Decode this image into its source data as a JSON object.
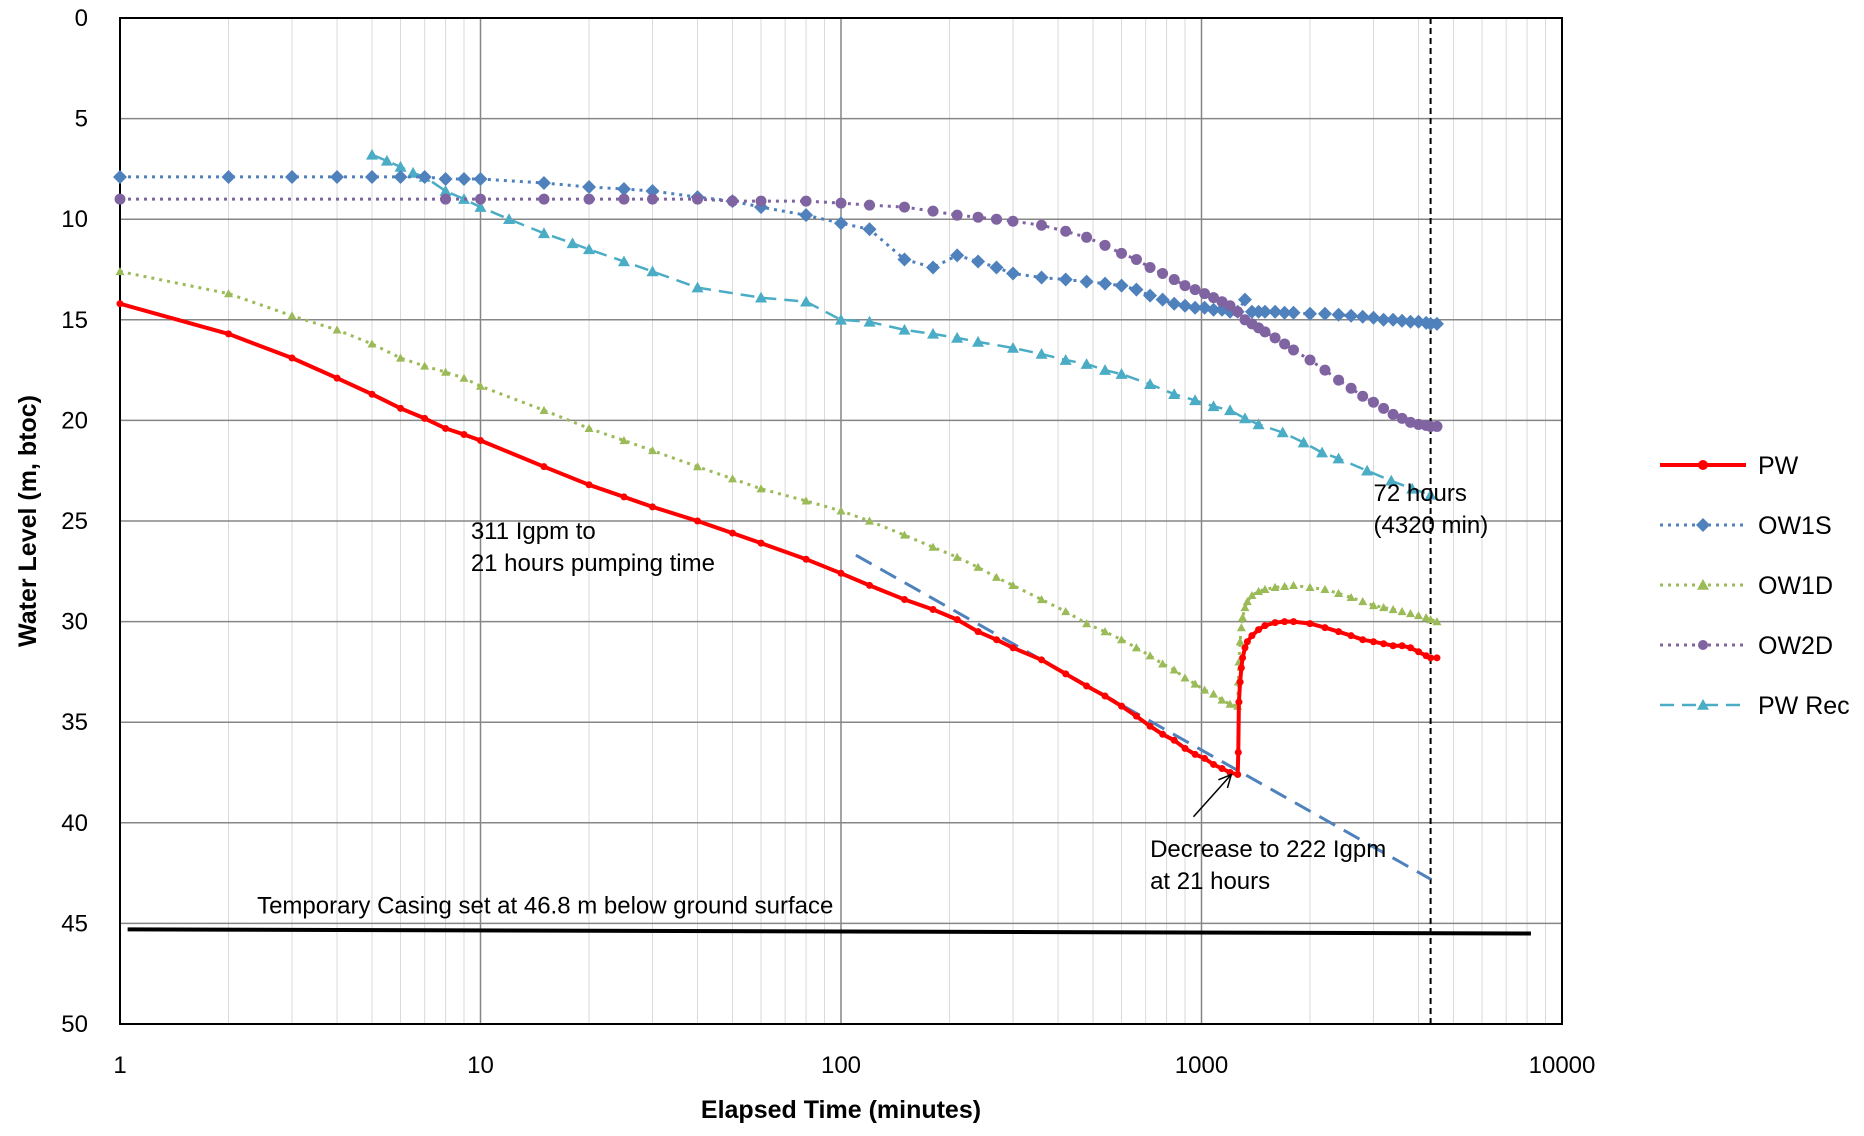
{
  "chart_data": {
    "type": "line",
    "x_scale": "log",
    "y_reversed": true,
    "xlabel": "Elapsed Time (minutes)",
    "ylabel": "Water Level (m, btoc)",
    "xlim": [
      1,
      10000
    ],
    "ylim": [
      0,
      50
    ],
    "x_ticks": [
      {
        "value": 1,
        "label": "1"
      },
      {
        "value": 10,
        "label": "10"
      },
      {
        "value": 100,
        "label": "100"
      },
      {
        "value": 1000,
        "label": "1000"
      },
      {
        "value": 10000,
        "label": "10000"
      }
    ],
    "y_ticks": [
      {
        "value": 0,
        "label": "0"
      },
      {
        "value": 5,
        "label": "5"
      },
      {
        "value": 10,
        "label": "10"
      },
      {
        "value": 15,
        "label": "15"
      },
      {
        "value": 20,
        "label": "20"
      },
      {
        "value": 25,
        "label": "25"
      },
      {
        "value": 30,
        "label": "30"
      },
      {
        "value": 35,
        "label": "35"
      },
      {
        "value": 40,
        "label": "40"
      },
      {
        "value": 45,
        "label": "45"
      },
      {
        "value": 50,
        "label": "50"
      }
    ],
    "grid": true,
    "legend_position": "right",
    "series": [
      {
        "name": "PW",
        "color": "#ff0000",
        "line_style": "solid",
        "marker": "circle",
        "x": [
          1,
          2,
          3,
          4,
          5,
          6,
          7,
          8,
          9,
          10,
          15,
          20,
          25,
          30,
          40,
          50,
          60,
          80,
          100,
          120,
          150,
          180,
          210,
          240,
          270,
          300,
          360,
          420,
          480,
          540,
          600,
          660,
          720,
          780,
          840,
          900,
          960,
          1020,
          1080,
          1140,
          1200,
          1260,
          1265,
          1270,
          1280,
          1290,
          1300,
          1320,
          1340,
          1380,
          1440,
          1500,
          1600,
          1700,
          1800,
          2000,
          2200,
          2400,
          2600,
          2800,
          3000,
          3200,
          3400,
          3600,
          3800,
          4000,
          4200,
          4320,
          4500
        ],
        "y": [
          14.2,
          15.7,
          16.9,
          17.9,
          18.7,
          19.4,
          19.9,
          20.4,
          20.7,
          21.0,
          22.3,
          23.2,
          23.8,
          24.3,
          25.0,
          25.6,
          26.1,
          26.9,
          27.6,
          28.2,
          28.9,
          29.4,
          29.9,
          30.5,
          30.9,
          31.3,
          31.9,
          32.6,
          33.2,
          33.7,
          34.2,
          34.7,
          35.2,
          35.6,
          35.9,
          36.3,
          36.6,
          36.8,
          37.1,
          37.3,
          37.5,
          37.6,
          36.5,
          34.0,
          33.0,
          32.3,
          31.8,
          31.3,
          31.0,
          30.7,
          30.4,
          30.2,
          30.05,
          30.0,
          30.0,
          30.1,
          30.3,
          30.5,
          30.7,
          30.9,
          31.0,
          31.1,
          31.2,
          31.2,
          31.3,
          31.5,
          31.7,
          31.8,
          31.8
        ]
      },
      {
        "name": "OW1S",
        "color": "#4f81bd",
        "line_style": "dotted",
        "marker": "diamond",
        "x": [
          1,
          2,
          3,
          4,
          5,
          6,
          7,
          8,
          9,
          10,
          15,
          20,
          25,
          30,
          40,
          50,
          60,
          80,
          100,
          120,
          150,
          180,
          210,
          240,
          270,
          300,
          360,
          420,
          480,
          540,
          600,
          660,
          720,
          780,
          840,
          900,
          960,
          1020,
          1080,
          1140,
          1200,
          1260,
          1320,
          1380,
          1440,
          1500,
          1600,
          1700,
          1800,
          2000,
          2200,
          2400,
          2600,
          2800,
          3000,
          3200,
          3400,
          3600,
          3800,
          4000,
          4200,
          4320,
          4500
        ],
        "y": [
          7.9,
          7.9,
          7.9,
          7.9,
          7.9,
          7.9,
          7.9,
          8.0,
          8.0,
          8.0,
          8.2,
          8.4,
          8.5,
          8.6,
          8.9,
          9.1,
          9.4,
          9.8,
          10.2,
          10.5,
          12.0,
          12.4,
          11.8,
          12.1,
          12.4,
          12.7,
          12.9,
          13.0,
          13.1,
          13.2,
          13.3,
          13.5,
          13.8,
          14.0,
          14.2,
          14.3,
          14.4,
          14.4,
          14.5,
          14.5,
          14.6,
          14.6,
          14.0,
          14.6,
          14.6,
          14.6,
          14.6,
          14.65,
          14.65,
          14.7,
          14.7,
          14.75,
          14.8,
          14.85,
          14.9,
          15.0,
          15.0,
          15.05,
          15.1,
          15.1,
          15.15,
          15.2,
          15.2
        ]
      },
      {
        "name": "OW1D",
        "color": "#9bbb59",
        "line_style": "dotted",
        "marker": "triangle",
        "x": [
          1,
          2,
          3,
          4,
          5,
          6,
          7,
          8,
          9,
          10,
          15,
          20,
          25,
          30,
          40,
          50,
          60,
          80,
          100,
          120,
          150,
          180,
          210,
          240,
          270,
          300,
          360,
          420,
          480,
          540,
          600,
          660,
          720,
          780,
          840,
          900,
          960,
          1020,
          1080,
          1140,
          1200,
          1260,
          1265,
          1270,
          1280,
          1290,
          1300,
          1320,
          1340,
          1380,
          1440,
          1500,
          1600,
          1700,
          1800,
          2000,
          2200,
          2400,
          2600,
          2800,
          3000,
          3200,
          3400,
          3600,
          3800,
          4000,
          4200,
          4320,
          4500
        ],
        "y": [
          12.6,
          13.7,
          14.8,
          15.5,
          16.2,
          16.9,
          17.3,
          17.6,
          17.9,
          18.3,
          19.5,
          20.4,
          21.0,
          21.5,
          22.3,
          22.9,
          23.4,
          24.0,
          24.5,
          25.0,
          25.7,
          26.3,
          26.8,
          27.3,
          27.8,
          28.2,
          28.9,
          29.5,
          30.1,
          30.5,
          30.9,
          31.3,
          31.7,
          32.1,
          32.4,
          32.8,
          33.1,
          33.4,
          33.6,
          33.9,
          34.1,
          34.2,
          33.0,
          32.0,
          31.0,
          30.3,
          29.8,
          29.3,
          29.0,
          28.7,
          28.5,
          28.4,
          28.3,
          28.25,
          28.2,
          28.3,
          28.4,
          28.6,
          28.8,
          29.0,
          29.2,
          29.3,
          29.4,
          29.5,
          29.6,
          29.7,
          29.8,
          29.9,
          30.0
        ]
      },
      {
        "name": "OW2D",
        "color": "#8064a2",
        "line_style": "dotted",
        "marker": "circle",
        "x": [
          1,
          8,
          10,
          15,
          20,
          25,
          30,
          40,
          50,
          60,
          80,
          100,
          120,
          150,
          180,
          210,
          240,
          270,
          300,
          360,
          420,
          480,
          540,
          600,
          660,
          720,
          780,
          840,
          900,
          960,
          1020,
          1080,
          1140,
          1200,
          1260,
          1320,
          1380,
          1440,
          1500,
          1600,
          1700,
          1800,
          2000,
          2200,
          2400,
          2600,
          2800,
          3000,
          3200,
          3400,
          3600,
          3800,
          4000,
          4200,
          4320,
          4500
        ],
        "y": [
          9.0,
          9.0,
          9.0,
          9.0,
          9.0,
          9.0,
          9.0,
          9.0,
          9.1,
          9.1,
          9.1,
          9.2,
          9.3,
          9.4,
          9.6,
          9.8,
          9.9,
          10.0,
          10.1,
          10.3,
          10.6,
          10.9,
          11.3,
          11.7,
          12.0,
          12.4,
          12.7,
          13.0,
          13.3,
          13.5,
          13.7,
          13.9,
          14.1,
          14.3,
          14.6,
          15.0,
          15.2,
          15.4,
          15.6,
          15.9,
          16.2,
          16.5,
          17.0,
          17.5,
          18.0,
          18.4,
          18.8,
          19.1,
          19.4,
          19.7,
          19.9,
          20.1,
          20.2,
          20.25,
          20.3,
          20.3
        ]
      },
      {
        "name": "PW Rec",
        "color": "#4bacc6",
        "line_style": "dashed",
        "marker": "triangle",
        "x": [
          5,
          5.5,
          6,
          6.5,
          7,
          8,
          9,
          10,
          12,
          15,
          18,
          20,
          25,
          30,
          40,
          60,
          80,
          100,
          120,
          150,
          180,
          210,
          240,
          300,
          360,
          420,
          480,
          540,
          600,
          720,
          840,
          960,
          1080,
          1200,
          1320,
          1440,
          1680,
          1920,
          2160,
          2400,
          2880,
          3360,
          3840,
          4320
        ],
        "y": [
          6.8,
          7.1,
          7.4,
          7.7,
          7.9,
          8.6,
          9.0,
          9.4,
          10.0,
          10.7,
          11.2,
          11.5,
          12.1,
          12.6,
          13.4,
          13.9,
          14.1,
          15.0,
          15.1,
          15.5,
          15.7,
          15.9,
          16.1,
          16.4,
          16.7,
          17.0,
          17.2,
          17.5,
          17.7,
          18.2,
          18.7,
          19.0,
          19.3,
          19.5,
          19.9,
          20.2,
          20.6,
          21.1,
          21.6,
          21.9,
          22.5,
          23.0,
          23.4,
          23.7
        ]
      }
    ],
    "reference_lines": {
      "casing": {
        "x": [
          1.05,
          8200
        ],
        "y": [
          45.3,
          45.5
        ],
        "color": "#000000"
      },
      "time_72h": {
        "x": 4320,
        "y": [
          0,
          50
        ],
        "color": "#000000"
      },
      "trend": {
        "x": [
          110,
          4320
        ],
        "y": [
          26.7,
          42.8
        ],
        "color": "#4f81bd"
      }
    },
    "annotations": [
      {
        "lines": [
          "311 Igpm to",
          "21 hours pumping time"
        ],
        "x": 9.4,
        "y": 25.9
      },
      {
        "lines": [
          "72 hours",
          "(4320 min)"
        ],
        "x": 3000,
        "y": 24.0
      },
      {
        "lines": [
          "Decrease to 222 Igpm",
          "at 21 hours"
        ],
        "x": 720,
        "y": 41.7
      },
      {
        "lines": [
          "Temporary Casing set at 46.8 m below ground surface"
        ],
        "x": 2.4,
        "y": 44.5
      }
    ],
    "arrow": {
      "from": {
        "x": 950,
        "y": 39.7
      },
      "to": {
        "x": 1210,
        "y": 37.6
      }
    }
  }
}
